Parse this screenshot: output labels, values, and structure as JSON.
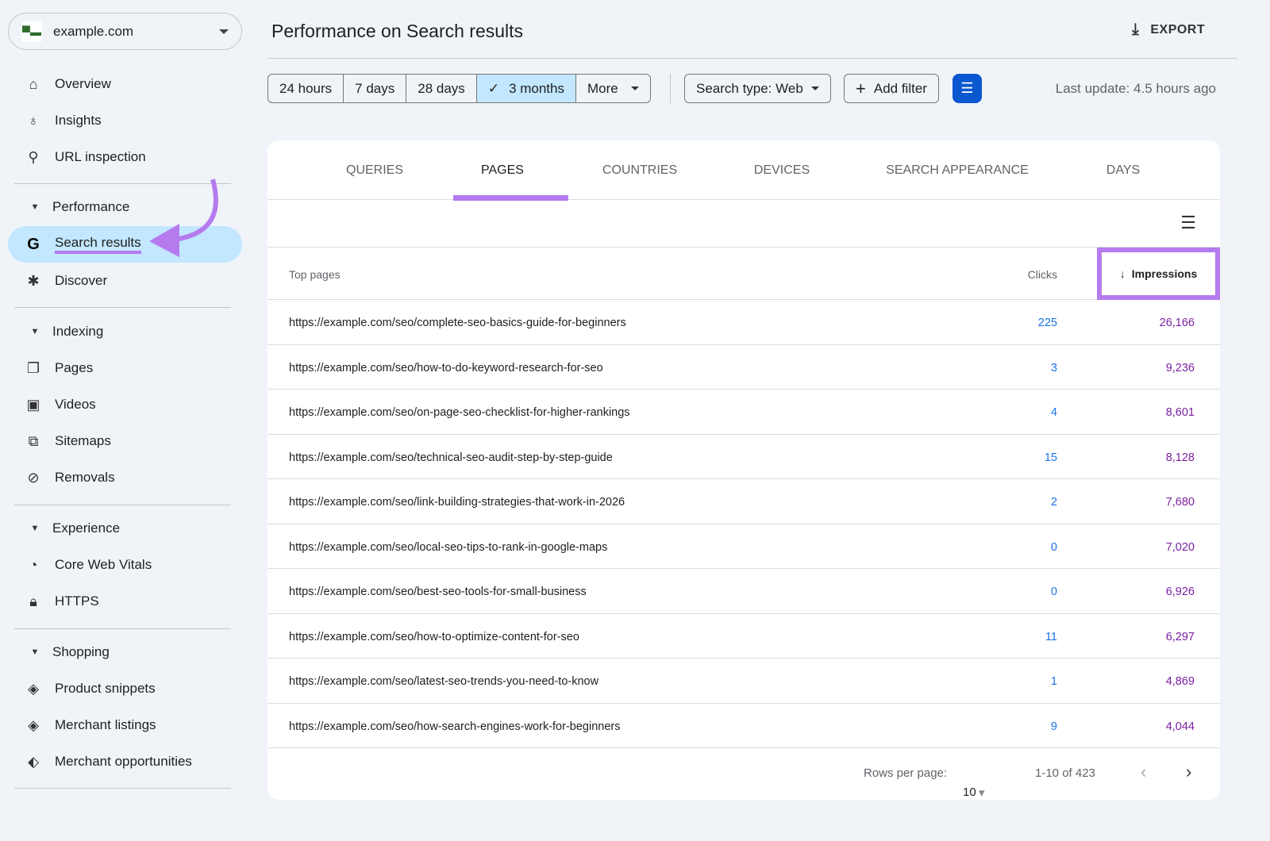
{
  "property": {
    "name": "example.com"
  },
  "sidebar": {
    "top": [
      {
        "label": "Overview",
        "icon": "home-icon"
      },
      {
        "label": "Insights",
        "icon": "lightbulb-icon"
      },
      {
        "label": "URL inspection",
        "icon": "search-icon"
      }
    ],
    "performance": {
      "label": "Performance",
      "items": [
        {
          "label": "Search results",
          "icon": "google-icon",
          "active": true
        },
        {
          "label": "Discover",
          "icon": "asterisk-icon"
        }
      ]
    },
    "indexing": {
      "label": "Indexing",
      "items": [
        {
          "label": "Pages",
          "icon": "pages-icon"
        },
        {
          "label": "Videos",
          "icon": "video-icon"
        },
        {
          "label": "Sitemaps",
          "icon": "sitemap-icon"
        },
        {
          "label": "Removals",
          "icon": "eye-off-icon"
        }
      ]
    },
    "experience": {
      "label": "Experience",
      "items": [
        {
          "label": "Core Web Vitals",
          "icon": "gauge-icon"
        },
        {
          "label": "HTTPS",
          "icon": "lock-icon"
        }
      ]
    },
    "shopping": {
      "label": "Shopping",
      "items": [
        {
          "label": "Product snippets",
          "icon": "layers-icon"
        },
        {
          "label": "Merchant listings",
          "icon": "layers-icon"
        },
        {
          "label": "Merchant opportunities",
          "icon": "tag-icon"
        }
      ]
    }
  },
  "header": {
    "title": "Performance on Search results",
    "export": "EXPORT"
  },
  "filters": {
    "ranges": [
      "24 hours",
      "7 days",
      "28 days",
      "3 months",
      "More"
    ],
    "selected": "3 months",
    "search_type": "Search type: Web",
    "add_filter": "Add filter",
    "last_update": "Last update: 4.5 hours ago"
  },
  "tabs": [
    "QUERIES",
    "PAGES",
    "COUNTRIES",
    "DEVICES",
    "SEARCH APPEARANCE",
    "DAYS"
  ],
  "active_tab": "PAGES",
  "table": {
    "headers": {
      "page": "Top pages",
      "clicks": "Clicks",
      "impressions": "Impressions"
    },
    "rows": [
      {
        "url": "https://example.com/seo/complete-seo-basics-guide-for-beginners",
        "clicks": "225",
        "impressions": "26,166"
      },
      {
        "url": "https://example.com/seo/how-to-do-keyword-research-for-seo",
        "clicks": "3",
        "impressions": "9,236"
      },
      {
        "url": "https://example.com/seo/on-page-seo-checklist-for-higher-rankings",
        "clicks": "4",
        "impressions": "8,601"
      },
      {
        "url": "https://example.com/seo/technical-seo-audit-step-by-step-guide",
        "clicks": "15",
        "impressions": "8,128"
      },
      {
        "url": "https://example.com/seo/link-building-strategies-that-work-in-2026",
        "clicks": "2",
        "impressions": "7,680"
      },
      {
        "url": "https://example.com/seo/local-seo-tips-to-rank-in-google-maps",
        "clicks": "0",
        "impressions": "7,020"
      },
      {
        "url": "https://example.com/seo/best-seo-tools-for-small-business",
        "clicks": "0",
        "impressions": "6,926"
      },
      {
        "url": "https://example.com/seo/how-to-optimize-content-for-seo",
        "clicks": "11",
        "impressions": "6,297"
      },
      {
        "url": "https://example.com/seo/latest-seo-trends-you-need-to-know",
        "clicks": "1",
        "impressions": "4,869"
      },
      {
        "url": "https://example.com/seo/how-search-engines-work-for-beginners",
        "clicks": "9",
        "impressions": "4,044"
      }
    ]
  },
  "pagination": {
    "rows_label": "Rows per page:",
    "rows_value": "10",
    "range": "1-10 of 423"
  },
  "colors": {
    "accent": "#0b57d0",
    "active_nav": "#c2e7ff",
    "annotation": "#b57bee",
    "clicks": "#1a73e8",
    "impressions": "#7b1fa2"
  }
}
